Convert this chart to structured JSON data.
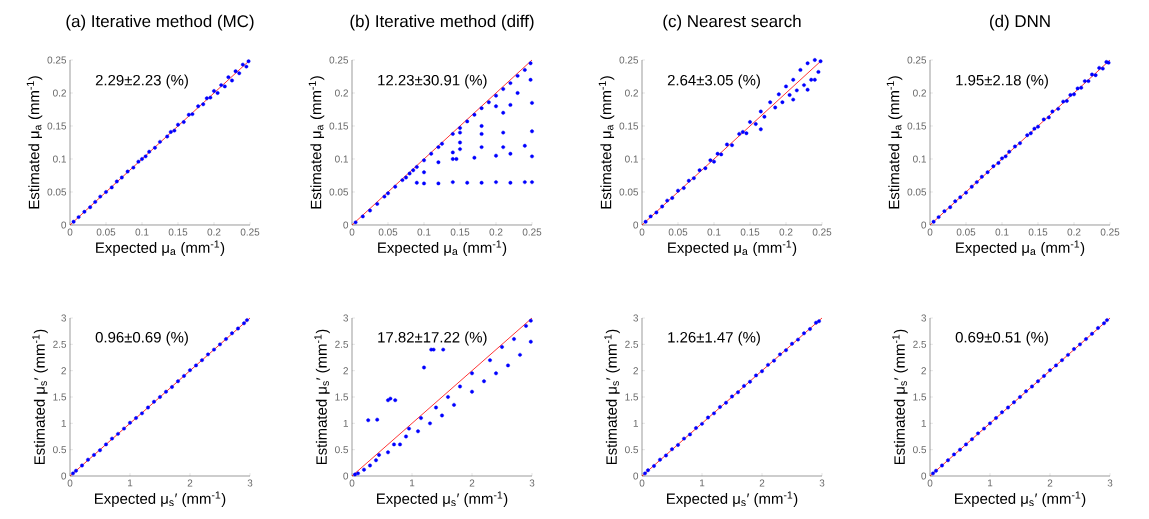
{
  "chart_data": [
    {
      "type": "scatter",
      "title": "(a) Iterative method (MC)",
      "xlabel": "Expected μ$_{a}$ (mm$^{-1}$)",
      "ylabel": "Estimated μ$_{a}$ (mm$^{-1}$)",
      "xlim": [
        0,
        0.25
      ],
      "ylim": [
        0,
        0.25
      ],
      "xticks": [
        0,
        0.05,
        0.1,
        0.15,
        0.2,
        0.25
      ],
      "yticks": [
        0,
        0.05,
        0.1,
        0.15,
        0.2,
        0.25
      ],
      "marker": "circle",
      "annotations": [
        "2.29±2.23 (%)"
      ],
      "series": [
        {
          "color": "#0000ff",
          "x": [
            0.005,
            0.012,
            0.02,
            0.028,
            0.035,
            0.042,
            0.05,
            0.058,
            0.065,
            0.072,
            0.08,
            0.088,
            0.095,
            0.1,
            0.105,
            0.11,
            0.118,
            0.125,
            0.135,
            0.14,
            0.145,
            0.15,
            0.158,
            0.165,
            0.17,
            0.178,
            0.185,
            0.19,
            0.195,
            0.2,
            0.205,
            0.21,
            0.215,
            0.22,
            0.225,
            0.23,
            0.235,
            0.24,
            0.245,
            0.248
          ],
          "values": [
            0.005,
            0.012,
            0.02,
            0.027,
            0.035,
            0.043,
            0.05,
            0.057,
            0.066,
            0.072,
            0.081,
            0.087,
            0.096,
            0.1,
            0.104,
            0.111,
            0.117,
            0.126,
            0.134,
            0.141,
            0.143,
            0.152,
            0.156,
            0.167,
            0.168,
            0.18,
            0.183,
            0.192,
            0.193,
            0.203,
            0.2,
            0.212,
            0.21,
            0.224,
            0.219,
            0.233,
            0.23,
            0.243,
            0.24,
            0.248
          ]
        },
        {
          "type": "line",
          "color": "#ff0000",
          "marker": "none",
          "x": [
            0,
            0.25
          ],
          "values": [
            0,
            0.25
          ]
        }
      ]
    },
    {
      "type": "scatter",
      "title": "(b) Iterative method (diff)",
      "xlabel": "Expected μ$_{a}$ (mm$^{-1}$)",
      "ylabel": "Estimated μ$_{a}$ (mm$^{-1}$)",
      "xlim": [
        0,
        0.25
      ],
      "ylim": [
        0,
        0.25
      ],
      "xticks": [
        0,
        0.05,
        0.1,
        0.15,
        0.2,
        0.25
      ],
      "yticks": [
        0,
        0.05,
        0.1,
        0.15,
        0.2,
        0.25
      ],
      "marker": "circle",
      "annotations": [
        "12.23±30.91 (%)"
      ],
      "series": [
        {
          "color": "#0000ff",
          "x": [
            0.005,
            0.015,
            0.025,
            0.035,
            0.045,
            0.05,
            0.06,
            0.07,
            0.075,
            0.08,
            0.085,
            0.09,
            0.1,
            0.11,
            0.12,
            0.125,
            0.14,
            0.14,
            0.14,
            0.15,
            0.16,
            0.17,
            0.18,
            0.19,
            0.2,
            0.21,
            0.22,
            0.23,
            0.24,
            0.248,
            0.09,
            0.1,
            0.12,
            0.14,
            0.16,
            0.18,
            0.2,
            0.22,
            0.24,
            0.25,
            0.145,
            0.17,
            0.2,
            0.22,
            0.25,
            0.15,
            0.18,
            0.21,
            0.24,
            0.15,
            0.18,
            0.21,
            0.25,
            0.2,
            0.22,
            0.25,
            0.1,
            0.12,
            0.15,
            0.18,
            0.21,
            0.23,
            0.248
          ],
          "values": [
            0.004,
            0.013,
            0.022,
            0.032,
            0.043,
            0.048,
            0.058,
            0.068,
            0.072,
            0.078,
            0.083,
            0.088,
            0.098,
            0.108,
            0.118,
            0.123,
            0.138,
            0.11,
            0.1,
            0.147,
            0.157,
            0.167,
            0.177,
            0.186,
            0.196,
            0.206,
            0.215,
            0.226,
            0.235,
            0.245,
            0.064,
            0.063,
            0.063,
            0.065,
            0.064,
            0.064,
            0.065,
            0.064,
            0.065,
            0.065,
            0.1,
            0.102,
            0.105,
            0.108,
            0.104,
            0.115,
            0.118,
            0.118,
            0.12,
            0.14,
            0.138,
            0.14,
            0.142,
            0.18,
            0.182,
            0.185,
            0.08,
            0.095,
            0.125,
            0.15,
            0.17,
            0.2,
            0.22
          ]
        },
        {
          "type": "line",
          "color": "#ff0000",
          "marker": "none",
          "x": [
            0,
            0.25
          ],
          "values": [
            0,
            0.25
          ]
        }
      ]
    },
    {
      "type": "scatter",
      "title": "(c) Nearest search",
      "xlabel": "Expected μ$_{a}$ (mm$^{-1}$)",
      "ylabel": "Estimated μ$_{a}$ (mm$^{-1}$)",
      "xlim": [
        0,
        0.25
      ],
      "ylim": [
        0,
        0.25
      ],
      "xticks": [
        0,
        0.05,
        0.1,
        0.15,
        0.2,
        0.25
      ],
      "yticks": [
        0,
        0.05,
        0.1,
        0.15,
        0.2,
        0.25
      ],
      "marker": "circle",
      "annotations": [
        "2.64±3.05 (%)"
      ],
      "series": [
        {
          "color": "#0000ff",
          "x": [
            0.005,
            0.012,
            0.02,
            0.028,
            0.035,
            0.042,
            0.05,
            0.058,
            0.065,
            0.072,
            0.08,
            0.088,
            0.095,
            0.1,
            0.105,
            0.11,
            0.118,
            0.125,
            0.135,
            0.14,
            0.145,
            0.15,
            0.158,
            0.165,
            0.17,
            0.178,
            0.185,
            0.19,
            0.195,
            0.2,
            0.205,
            0.21,
            0.215,
            0.22,
            0.225,
            0.23,
            0.235,
            0.24,
            0.245,
            0.248,
            0.165,
            0.21,
            0.23,
            0.24
          ],
          "values": [
            0.005,
            0.013,
            0.019,
            0.028,
            0.037,
            0.041,
            0.052,
            0.056,
            0.067,
            0.071,
            0.083,
            0.086,
            0.098,
            0.096,
            0.108,
            0.107,
            0.122,
            0.121,
            0.138,
            0.141,
            0.139,
            0.156,
            0.153,
            0.172,
            0.164,
            0.186,
            0.178,
            0.198,
            0.186,
            0.21,
            0.197,
            0.22,
            0.204,
            0.235,
            0.212,
            0.245,
            0.22,
            0.25,
            0.232,
            0.248,
            0.145,
            0.19,
            0.205,
            0.22
          ]
        },
        {
          "type": "line",
          "color": "#ff0000",
          "marker": "none",
          "x": [
            0,
            0.25
          ],
          "values": [
            0,
            0.25
          ]
        }
      ]
    },
    {
      "type": "scatter",
      "title": "(d) DNN",
      "xlabel": "Expected μ$_{a}$ (mm$^{-1}$)",
      "ylabel": "Estimated μ$_{a}$ (mm$^{-1}$)",
      "xlim": [
        0,
        0.25
      ],
      "ylim": [
        0,
        0.25
      ],
      "xticks": [
        0,
        0.05,
        0.1,
        0.15,
        0.2,
        0.25
      ],
      "yticks": [
        0,
        0.05,
        0.1,
        0.15,
        0.2,
        0.25
      ],
      "marker": "circle",
      "annotations": [
        "1.95±2.18 (%)"
      ],
      "series": [
        {
          "color": "#0000ff",
          "x": [
            0.005,
            0.012,
            0.02,
            0.028,
            0.035,
            0.042,
            0.05,
            0.058,
            0.065,
            0.072,
            0.08,
            0.088,
            0.095,
            0.1,
            0.105,
            0.11,
            0.118,
            0.125,
            0.135,
            0.14,
            0.145,
            0.15,
            0.158,
            0.165,
            0.17,
            0.178,
            0.185,
            0.19,
            0.195,
            0.2,
            0.205,
            0.21,
            0.215,
            0.22,
            0.225,
            0.23,
            0.235,
            0.24,
            0.245,
            0.248
          ],
          "values": [
            0.005,
            0.012,
            0.021,
            0.027,
            0.036,
            0.042,
            0.049,
            0.058,
            0.065,
            0.073,
            0.08,
            0.089,
            0.094,
            0.101,
            0.104,
            0.111,
            0.119,
            0.124,
            0.136,
            0.139,
            0.146,
            0.149,
            0.16,
            0.163,
            0.172,
            0.176,
            0.187,
            0.188,
            0.197,
            0.198,
            0.207,
            0.208,
            0.218,
            0.218,
            0.228,
            0.227,
            0.238,
            0.237,
            0.247,
            0.246
          ]
        },
        {
          "type": "line",
          "color": "#ff0000",
          "marker": "none",
          "x": [
            0,
            0.25
          ],
          "values": [
            0,
            0.25
          ]
        }
      ]
    },
    {
      "type": "scatter",
      "xlabel": "Expected μ$_{s}$′ (mm$^{-1}$)",
      "ylabel": "Estimated μ$_{s}$′ (mm$^{-1}$)",
      "xlim": [
        0,
        3
      ],
      "ylim": [
        0,
        3
      ],
      "xticks": [
        0,
        1,
        2,
        3
      ],
      "yticks": [
        0,
        0.5,
        1,
        1.5,
        2,
        2.5,
        3
      ],
      "marker": "circle",
      "annotations": [
        "0.96±0.69 (%)"
      ],
      "series": [
        {
          "color": "#0000ff",
          "x": [
            0.05,
            0.1,
            0.2,
            0.3,
            0.4,
            0.5,
            0.6,
            0.7,
            0.8,
            0.9,
            1.0,
            1.1,
            1.2,
            1.3,
            1.4,
            1.5,
            1.6,
            1.7,
            1.8,
            1.9,
            2.0,
            2.1,
            2.2,
            2.3,
            2.4,
            2.5,
            2.6,
            2.7,
            2.8,
            2.9,
            2.95
          ],
          "values": [
            0.05,
            0.1,
            0.2,
            0.31,
            0.4,
            0.49,
            0.6,
            0.71,
            0.8,
            0.9,
            1.01,
            1.1,
            1.19,
            1.3,
            1.41,
            1.5,
            1.6,
            1.69,
            1.8,
            1.9,
            2.01,
            2.1,
            2.2,
            2.31,
            2.4,
            2.5,
            2.6,
            2.71,
            2.8,
            2.9,
            2.96
          ]
        },
        {
          "type": "line",
          "color": "#ff0000",
          "marker": "none",
          "x": [
            0,
            3
          ],
          "values": [
            0,
            3
          ]
        }
      ]
    },
    {
      "type": "scatter",
      "xlabel": "Expected μ$_{s}$′ (mm$^{-1}$)",
      "ylabel": "Estimated μ$_{s}$′ (mm$^{-1}$)",
      "xlim": [
        0,
        3
      ],
      "ylim": [
        0,
        3
      ],
      "xticks": [
        0,
        1,
        2,
        3
      ],
      "yticks": [
        0,
        0.5,
        1,
        1.5,
        2,
        2.5,
        3
      ],
      "marker": "circle",
      "annotations": [
        "17.82±17.22 (%)"
      ],
      "series": [
        {
          "color": "#0000ff",
          "x": [
            0.05,
            0.1,
            0.2,
            0.3,
            0.4,
            0.45,
            0.6,
            0.7,
            0.8,
            0.9,
            0.95,
            1.1,
            1.15,
            1.3,
            1.4,
            1.5,
            1.6,
            1.7,
            1.8,
            2.0,
            2.0,
            2.2,
            2.3,
            2.4,
            2.5,
            2.6,
            2.7,
            2.8,
            2.9,
            2.98,
            2.98,
            0.27,
            0.42,
            0.6,
            0.64,
            0.72,
            1.2,
            1.32,
            1.36,
            1.52
          ],
          "values": [
            0.03,
            0.05,
            0.12,
            0.2,
            0.3,
            0.4,
            0.45,
            0.6,
            0.6,
            0.75,
            0.9,
            0.85,
            1.1,
            1.0,
            1.3,
            1.15,
            1.5,
            1.35,
            1.7,
            1.6,
            1.95,
            1.8,
            2.2,
            1.95,
            2.45,
            2.1,
            2.6,
            2.3,
            2.85,
            2.55,
            2.95,
            1.06,
            1.07,
            1.44,
            1.47,
            1.44,
            2.06,
            2.4,
            2.4,
            2.4
          ]
        },
        {
          "type": "line",
          "color": "#ff0000",
          "marker": "none",
          "x": [
            0,
            3
          ],
          "values": [
            0,
            3
          ]
        }
      ]
    },
    {
      "type": "scatter",
      "xlabel": "Expected μ$_{s}$′ (mm$^{-1}$)",
      "ylabel": "Estimated μ$_{s}$′ (mm$^{-1}$)",
      "xlim": [
        0,
        3
      ],
      "ylim": [
        0,
        3
      ],
      "xticks": [
        0,
        1,
        2,
        3
      ],
      "yticks": [
        0,
        0.5,
        1,
        1.5,
        2,
        2.5,
        3
      ],
      "marker": "circle",
      "annotations": [
        "1.26±1.47 (%)"
      ],
      "series": [
        {
          "color": "#0000ff",
          "x": [
            0.05,
            0.1,
            0.2,
            0.3,
            0.4,
            0.5,
            0.6,
            0.7,
            0.8,
            0.9,
            1.0,
            1.1,
            1.2,
            1.3,
            1.4,
            1.5,
            1.6,
            1.7,
            1.8,
            1.9,
            2.0,
            2.1,
            2.2,
            2.3,
            2.4,
            2.5,
            2.6,
            2.7,
            2.8,
            2.9,
            2.95
          ],
          "values": [
            0.05,
            0.11,
            0.19,
            0.31,
            0.39,
            0.51,
            0.59,
            0.71,
            0.79,
            0.91,
            0.99,
            1.11,
            1.19,
            1.31,
            1.39,
            1.51,
            1.59,
            1.71,
            1.79,
            1.91,
            1.99,
            2.11,
            2.19,
            2.31,
            2.39,
            2.51,
            2.59,
            2.71,
            2.79,
            2.91,
            2.94
          ]
        },
        {
          "type": "line",
          "color": "#ff0000",
          "marker": "none",
          "x": [
            0,
            3
          ],
          "values": [
            0,
            3
          ]
        }
      ]
    },
    {
      "type": "scatter",
      "xlabel": "Expected μ$_{s}$′ (mm$^{-1}$)",
      "ylabel": "Estimated μ$_{s}$′ (mm$^{-1}$)",
      "xlim": [
        0,
        3
      ],
      "ylim": [
        0,
        3
      ],
      "xticks": [
        0,
        1,
        2,
        3
      ],
      "yticks": [
        0,
        0.5,
        1,
        1.5,
        2,
        2.5,
        3
      ],
      "marker": "circle",
      "annotations": [
        "0.69±0.51 (%)"
      ],
      "series": [
        {
          "color": "#0000ff",
          "x": [
            0.05,
            0.1,
            0.2,
            0.3,
            0.4,
            0.5,
            0.6,
            0.7,
            0.8,
            0.9,
            1.0,
            1.1,
            1.2,
            1.3,
            1.4,
            1.5,
            1.6,
            1.7,
            1.8,
            1.9,
            2.0,
            2.1,
            2.2,
            2.3,
            2.4,
            2.5,
            2.6,
            2.7,
            2.8,
            2.9,
            2.95
          ],
          "values": [
            0.05,
            0.1,
            0.2,
            0.3,
            0.41,
            0.5,
            0.6,
            0.7,
            0.81,
            0.9,
            1.0,
            1.1,
            1.21,
            1.3,
            1.4,
            1.5,
            1.61,
            1.7,
            1.8,
            1.9,
            2.01,
            2.1,
            2.2,
            2.3,
            2.41,
            2.5,
            2.6,
            2.7,
            2.81,
            2.9,
            2.96
          ]
        },
        {
          "type": "line",
          "color": "#ff0000",
          "marker": "none",
          "x": [
            0,
            3
          ],
          "values": [
            0,
            3
          ]
        }
      ]
    }
  ]
}
